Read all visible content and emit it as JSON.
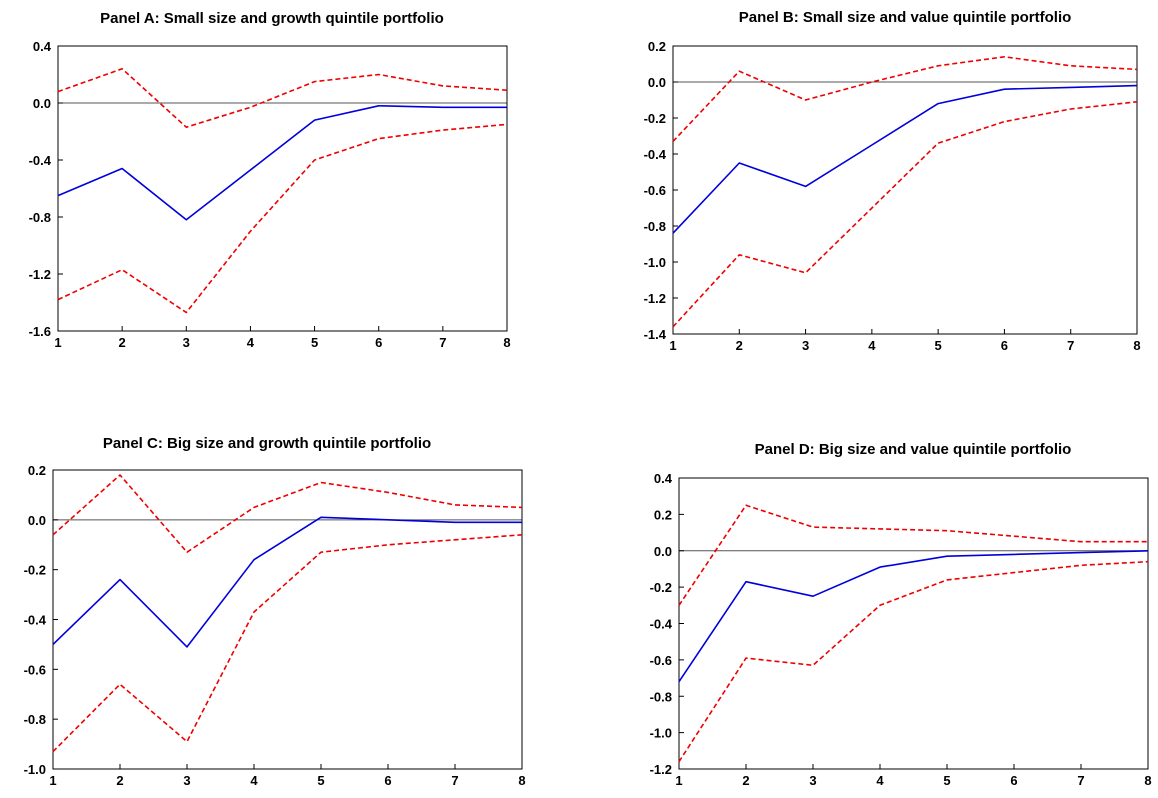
{
  "chart_data": [
    {
      "type": "line",
      "title": "Panel A: Small size and growth quintile portfolio",
      "xlabel": "",
      "ylabel": "",
      "x": [
        1,
        2,
        3,
        4,
        5,
        6,
        7,
        8
      ],
      "xlim": [
        1,
        8
      ],
      "ylim": [
        -1.6,
        0.4
      ],
      "yticks": [
        0.4,
        0.0,
        -0.4,
        -0.8,
        -1.2,
        -1.6
      ],
      "ytick_labels": [
        "0.4",
        "0.0",
        "-0.4",
        "-0.8",
        "-1.2",
        "-1.6"
      ],
      "grid": false,
      "zero_line": true,
      "series": [
        {
          "style": "solid",
          "color": "#0000dd",
          "values": [
            -0.65,
            -0.46,
            -0.82,
            -0.47,
            -0.12,
            -0.02,
            -0.03,
            -0.03
          ]
        },
        {
          "style": "dashed",
          "color": "#ee0000",
          "values": [
            0.08,
            0.24,
            -0.17,
            -0.03,
            0.15,
            0.2,
            0.12,
            0.09
          ]
        },
        {
          "style": "dashed",
          "color": "#ee0000",
          "values": [
            -1.38,
            -1.17,
            -1.47,
            -0.9,
            -0.4,
            -0.25,
            -0.19,
            -0.15
          ]
        }
      ]
    },
    {
      "type": "line",
      "title": "Panel B: Small size and value quintile portfolio",
      "xlabel": "",
      "ylabel": "",
      "x": [
        1,
        2,
        3,
        4,
        5,
        6,
        7,
        8
      ],
      "xlim": [
        1,
        8
      ],
      "ylim": [
        -1.4,
        0.2
      ],
      "yticks": [
        0.2,
        0.0,
        -0.2,
        -0.4,
        -0.6,
        -0.8,
        -1.0,
        -1.2,
        -1.4
      ],
      "ytick_labels": [
        "0.2",
        "0.0",
        "-0.2",
        "-0.4",
        "-0.6",
        "-0.8",
        "-1.0",
        "-1.2",
        "-1.4"
      ],
      "grid": false,
      "zero_line": true,
      "series": [
        {
          "style": "solid",
          "color": "#0000dd",
          "values": [
            -0.84,
            -0.45,
            -0.58,
            -0.35,
            -0.12,
            -0.04,
            -0.03,
            -0.02
          ]
        },
        {
          "style": "dashed",
          "color": "#ee0000",
          "values": [
            -0.33,
            0.06,
            -0.1,
            0.0,
            0.09,
            0.14,
            0.09,
            0.07
          ]
        },
        {
          "style": "dashed",
          "color": "#ee0000",
          "values": [
            -1.36,
            -0.96,
            -1.06,
            -0.7,
            -0.34,
            -0.22,
            -0.15,
            -0.11
          ]
        }
      ]
    },
    {
      "type": "line",
      "title": "Panel C: Big size and growth quintile portfolio",
      "xlabel": "",
      "ylabel": "",
      "x": [
        1,
        2,
        3,
        4,
        5,
        6,
        7,
        8
      ],
      "xlim": [
        1,
        8
      ],
      "ylim": [
        -1.0,
        0.2
      ],
      "yticks": [
        0.2,
        0.0,
        -0.2,
        -0.4,
        -0.6,
        -0.8,
        -1.0
      ],
      "ytick_labels": [
        "0.2",
        "0.0",
        "-0.2",
        "-0.4",
        "-0.6",
        "-0.8",
        "-1.0"
      ],
      "grid": false,
      "zero_line": true,
      "series": [
        {
          "style": "solid",
          "color": "#0000dd",
          "values": [
            -0.5,
            -0.24,
            -0.51,
            -0.16,
            0.01,
            0.0,
            -0.01,
            -0.01
          ]
        },
        {
          "style": "dashed",
          "color": "#ee0000",
          "values": [
            -0.06,
            0.18,
            -0.13,
            0.05,
            0.15,
            0.11,
            0.06,
            0.05
          ]
        },
        {
          "style": "dashed",
          "color": "#ee0000",
          "values": [
            -0.93,
            -0.66,
            -0.89,
            -0.37,
            -0.13,
            -0.1,
            -0.08,
            -0.06
          ]
        }
      ]
    },
    {
      "type": "line",
      "title": "Panel D: Big size and value quintile portfolio",
      "xlabel": "",
      "ylabel": "",
      "x": [
        1,
        2,
        3,
        4,
        5,
        6,
        7,
        8
      ],
      "xlim": [
        1,
        8
      ],
      "ylim": [
        -1.2,
        0.4
      ],
      "yticks": [
        0.4,
        0.2,
        0.0,
        -0.2,
        -0.4,
        -0.6,
        -0.8,
        -1.0,
        -1.2
      ],
      "ytick_labels": [
        "0.4",
        "0.2",
        "0.0",
        "-0.2",
        "-0.4",
        "-0.6",
        "-0.8",
        "-1.0",
        "-1.2"
      ],
      "grid": false,
      "zero_line": true,
      "series": [
        {
          "style": "solid",
          "color": "#0000dd",
          "values": [
            -0.72,
            -0.17,
            -0.25,
            -0.09,
            -0.03,
            -0.02,
            -0.01,
            0.0
          ]
        },
        {
          "style": "dashed",
          "color": "#ee0000",
          "values": [
            -0.3,
            0.25,
            0.13,
            0.12,
            0.11,
            0.08,
            0.05,
            0.05
          ]
        },
        {
          "style": "dashed",
          "color": "#ee0000",
          "values": [
            -1.16,
            -0.59,
            -0.63,
            -0.3,
            -0.16,
            -0.12,
            -0.08,
            -0.06
          ]
        }
      ]
    }
  ]
}
